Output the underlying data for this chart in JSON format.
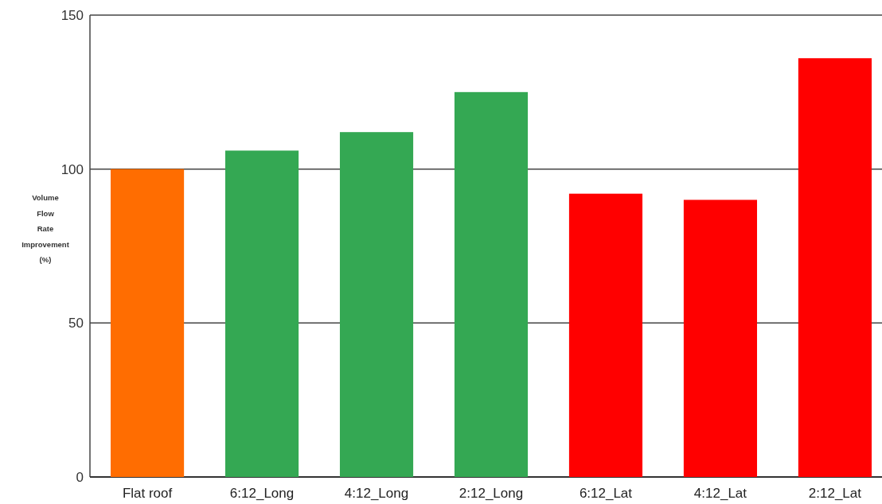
{
  "chart_data": {
    "type": "bar",
    "ylabel": "Volume Flow Rate Improvement (%)",
    "categories": [
      "Flat roof",
      "6:12_Long",
      "4:12_Long",
      "2:12_Long",
      "6:12_Lat",
      "4:12_Lat",
      "2:12_Lat"
    ],
    "values": [
      100,
      106,
      112,
      125,
      92,
      90,
      136
    ],
    "colors": [
      "#ff6d01",
      "#34a853",
      "#34a853",
      "#34a853",
      "#ff0000",
      "#ff0000",
      "#ff0000"
    ],
    "ylim": [
      0,
      150
    ],
    "yticks": [
      0,
      50,
      100,
      150
    ],
    "grid": "y"
  }
}
